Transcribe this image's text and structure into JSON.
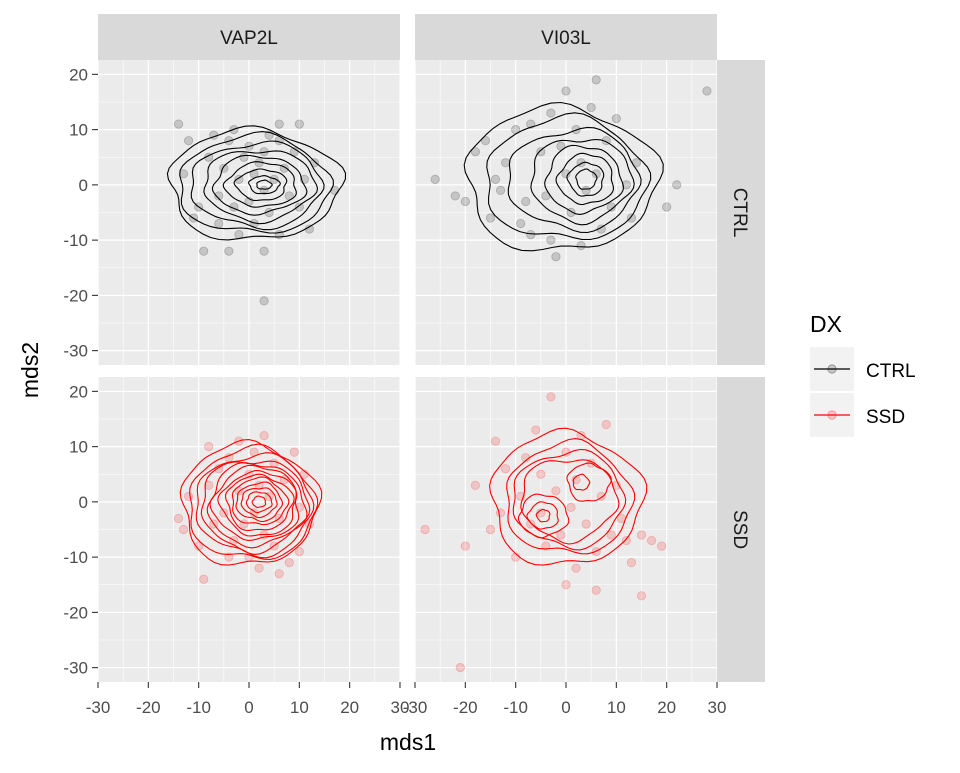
{
  "chart_data": {
    "type": "scatter",
    "title": "",
    "xlabel": "mds1",
    "ylabel": "mds2",
    "xlim": [
      -30,
      30
    ],
    "ylim": [
      -30,
      20
    ],
    "x_ticks": [
      "-30",
      "-20",
      "-10",
      "0",
      "10",
      "20",
      "30"
    ],
    "y_ticks": [
      "-30",
      "-20",
      "-10",
      "0",
      "10",
      "20"
    ],
    "facet_cols": [
      "VAP2L",
      "VI03L"
    ],
    "facet_rows": [
      "CTRL",
      "SSD"
    ],
    "legend": {
      "title": "DX",
      "position": "right",
      "entries": [
        {
          "label": "CTRL",
          "color": "#000000"
        },
        {
          "label": "SSD",
          "color": "#ff0000"
        }
      ]
    },
    "grid": true,
    "panels": [
      {
        "col": "VAP2L",
        "row": "CTRL",
        "series": "CTRL",
        "color": "#000000",
        "points": [
          [
            -14,
            11
          ],
          [
            -13,
            2
          ],
          [
            -12,
            8
          ],
          [
            -11,
            -6
          ],
          [
            -10,
            -4
          ],
          [
            -9,
            -12
          ],
          [
            -8,
            5
          ],
          [
            -7,
            9
          ],
          [
            -6,
            -2
          ],
          [
            -5,
            3
          ],
          [
            -4,
            8
          ],
          [
            -3,
            -4
          ],
          [
            -3,
            10
          ],
          [
            -2,
            1
          ],
          [
            -2,
            -9
          ],
          [
            -1,
            5
          ],
          [
            0,
            -3
          ],
          [
            0,
            7
          ],
          [
            1,
            2
          ],
          [
            1,
            -7
          ],
          [
            2,
            4
          ],
          [
            3,
            -1
          ],
          [
            3,
            6
          ],
          [
            4,
            -5
          ],
          [
            4,
            9
          ],
          [
            5,
            1
          ],
          [
            6,
            -9
          ],
          [
            6,
            8
          ],
          [
            7,
            3
          ],
          [
            8,
            -2
          ],
          [
            9,
            6
          ],
          [
            10,
            -4
          ],
          [
            10,
            11
          ],
          [
            11,
            1
          ],
          [
            12,
            -8
          ],
          [
            13,
            4
          ],
          [
            17,
            -1
          ],
          [
            -4,
            -12
          ],
          [
            3,
            -12
          ],
          [
            3,
            -21
          ],
          [
            -6,
            -7
          ],
          [
            6,
            11
          ]
        ],
        "contours": [
          {
            "cx": 1,
            "cy": 0,
            "rx": 17,
            "ry": 10
          },
          {
            "cx": 1,
            "cy": 0,
            "rx": 15,
            "ry": 8.8
          },
          {
            "cx": 1.5,
            "cy": 0,
            "rx": 13,
            "ry": 7.6
          },
          {
            "cx": 2,
            "cy": 0,
            "rx": 11,
            "ry": 6.4
          },
          {
            "cx": 2,
            "cy": 0,
            "rx": 9,
            "ry": 5.2
          },
          {
            "cx": 2.5,
            "cy": 0,
            "rx": 7,
            "ry": 4
          },
          {
            "cx": 2.5,
            "cy": 0,
            "rx": 5,
            "ry": 2.8
          },
          {
            "cx": 3,
            "cy": 0,
            "rx": 3,
            "ry": 1.6
          },
          {
            "cx": 3,
            "cy": 0,
            "rx": 1.5,
            "ry": 0.8
          }
        ]
      },
      {
        "col": "VI03L",
        "row": "CTRL",
        "series": "CTRL",
        "color": "#000000",
        "points": [
          [
            -26,
            1
          ],
          [
            -22,
            -2
          ],
          [
            -20,
            -3
          ],
          [
            -18,
            6
          ],
          [
            -16,
            8
          ],
          [
            -15,
            -6
          ],
          [
            -14,
            1
          ],
          [
            -13,
            -1
          ],
          [
            -12,
            4
          ],
          [
            -10,
            10
          ],
          [
            -9,
            -7
          ],
          [
            -8,
            -3
          ],
          [
            -7,
            11
          ],
          [
            -7,
            -9
          ],
          [
            -5,
            6
          ],
          [
            -4,
            -2
          ],
          [
            -3,
            13
          ],
          [
            -3,
            -10
          ],
          [
            -1,
            7
          ],
          [
            0,
            2
          ],
          [
            0,
            17
          ],
          [
            1,
            -5
          ],
          [
            2,
            10
          ],
          [
            3,
            4
          ],
          [
            3,
            -11
          ],
          [
            4,
            -1
          ],
          [
            5,
            14
          ],
          [
            6,
            2
          ],
          [
            6,
            19
          ],
          [
            7,
            -8
          ],
          [
            8,
            8
          ],
          [
            9,
            -4
          ],
          [
            10,
            12
          ],
          [
            12,
            0
          ],
          [
            13,
            -6
          ],
          [
            14,
            4
          ],
          [
            20,
            -4
          ],
          [
            22,
            0
          ],
          [
            28,
            17
          ],
          [
            -2,
            -13
          ]
        ],
        "contours": [
          {
            "cx": -1,
            "cy": 1,
            "rx": 19,
            "ry": 13
          },
          {
            "cx": 0,
            "cy": 1,
            "rx": 16,
            "ry": 11
          },
          {
            "cx": 1.5,
            "cy": 1,
            "rx": 13,
            "ry": 9
          },
          {
            "cx": 3,
            "cy": 1,
            "rx": 10,
            "ry": 7.5
          },
          {
            "cx": 3.5,
            "cy": 1,
            "rx": 7.5,
            "ry": 6
          },
          {
            "cx": 4,
            "cy": 1,
            "rx": 5.5,
            "ry": 4.5
          },
          {
            "cx": 4,
            "cy": 1,
            "rx": 3.5,
            "ry": 3
          },
          {
            "cx": 4,
            "cy": 1,
            "rx": 2,
            "ry": 1.8
          }
        ]
      },
      {
        "col": "VAP2L",
        "row": "SSD",
        "series": "SSD",
        "color": "#ff0000",
        "points": [
          [
            -14,
            -3
          ],
          [
            -13,
            -5
          ],
          [
            -12,
            1
          ],
          [
            -10,
            -8
          ],
          [
            -9,
            -14
          ],
          [
            -8,
            10
          ],
          [
            -8,
            3
          ],
          [
            -7,
            -4
          ],
          [
            -6,
            6
          ],
          [
            -5,
            -2
          ],
          [
            -4,
            8
          ],
          [
            -3,
            -7
          ],
          [
            -2,
            2
          ],
          [
            -2,
            11
          ],
          [
            -1,
            -4
          ],
          [
            0,
            5
          ],
          [
            0,
            -10
          ],
          [
            1,
            -2
          ],
          [
            1,
            9
          ],
          [
            2,
            3
          ],
          [
            3,
            -6
          ],
          [
            3,
            12
          ],
          [
            4,
            1
          ],
          [
            5,
            -8
          ],
          [
            5,
            7
          ],
          [
            6,
            -3
          ],
          [
            7,
            4
          ],
          [
            8,
            -11
          ],
          [
            9,
            9
          ],
          [
            10,
            -1
          ],
          [
            10,
            -9
          ],
          [
            11,
            5
          ],
          [
            12,
            -4
          ],
          [
            2,
            -12
          ],
          [
            -4,
            -10
          ],
          [
            6,
            -13
          ]
        ],
        "contours": [
          {
            "cx": 0,
            "cy": -0.5,
            "rx": 13.5,
            "ry": 11
          },
          {
            "cx": 0.5,
            "cy": -0.5,
            "rx": 12.5,
            "ry": 10
          },
          {
            "cx": 1,
            "cy": -0.5,
            "rx": 11.5,
            "ry": 9
          },
          {
            "cx": 1,
            "cy": -0.5,
            "rx": 10.5,
            "ry": 8.2
          },
          {
            "cx": 1.5,
            "cy": -0.5,
            "rx": 9.5,
            "ry": 7.4
          },
          {
            "cx": 1.5,
            "cy": -0.3,
            "rx": 8.5,
            "ry": 6.6
          },
          {
            "cx": 2,
            "cy": -0.3,
            "rx": 7.5,
            "ry": 5.8
          },
          {
            "cx": 2,
            "cy": -0.2,
            "rx": 6.5,
            "ry": 5
          },
          {
            "cx": 2,
            "cy": 0,
            "rx": 5.5,
            "ry": 4.2
          },
          {
            "cx": 2,
            "cy": 0,
            "rx": 4.5,
            "ry": 3.4
          },
          {
            "cx": 2,
            "cy": 0,
            "rx": 3.5,
            "ry": 2.6
          },
          {
            "cx": 2,
            "cy": 0,
            "rx": 2.5,
            "ry": 1.8
          },
          {
            "cx": 2,
            "cy": 0,
            "rx": 1.3,
            "ry": 1
          }
        ]
      },
      {
        "col": "VI03L",
        "row": "SSD",
        "series": "SSD",
        "color": "#ff0000",
        "points": [
          [
            -28,
            -5
          ],
          [
            -21,
            -30
          ],
          [
            -20,
            -8
          ],
          [
            -18,
            3
          ],
          [
            -15,
            -5
          ],
          [
            -14,
            11
          ],
          [
            -13,
            -2
          ],
          [
            -12,
            6
          ],
          [
            -10,
            -10
          ],
          [
            -9,
            1
          ],
          [
            -8,
            8
          ],
          [
            -7,
            -4
          ],
          [
            -6,
            13
          ],
          [
            -5,
            -2
          ],
          [
            -5,
            5
          ],
          [
            -4,
            -8
          ],
          [
            -3,
            19
          ],
          [
            -2,
            2
          ],
          [
            -1,
            -6
          ],
          [
            0,
            9
          ],
          [
            0,
            -15
          ],
          [
            1,
            -1
          ],
          [
            2,
            4
          ],
          [
            2,
            -12
          ],
          [
            3,
            12
          ],
          [
            4,
            -4
          ],
          [
            5,
            7
          ],
          [
            6,
            -9
          ],
          [
            7,
            1
          ],
          [
            8,
            14
          ],
          [
            9,
            -6
          ],
          [
            10,
            3
          ],
          [
            11,
            -3
          ],
          [
            12,
            -7
          ],
          [
            13,
            -11
          ],
          [
            15,
            -6
          ],
          [
            17,
            -7
          ],
          [
            19,
            -8
          ],
          [
            15,
            -17
          ],
          [
            6,
            -16
          ]
        ],
        "contours": [
          {
            "cx": 0,
            "cy": 0.5,
            "rx": 15,
            "ry": 12
          },
          {
            "cx": 0.5,
            "cy": 0.5,
            "rx": 12.5,
            "ry": 10
          },
          {
            "cx": 0.5,
            "cy": 0.5,
            "rx": 11,
            "ry": 8.6
          },
          {
            "cx": 0.5,
            "cy": 0.5,
            "rx": 9.5,
            "ry": 7.4
          },
          {
            "cx": -4.5,
            "cy": -2.5,
            "rx": 4.8,
            "ry": 3.8
          },
          {
            "cx": -4.5,
            "cy": -2.5,
            "rx": 3,
            "ry": 2.4
          },
          {
            "cx": -4.5,
            "cy": -2.5,
            "rx": 1.3,
            "ry": 1.1
          },
          {
            "cx": 4.5,
            "cy": 3.5,
            "rx": 4.2,
            "ry": 3.4
          },
          {
            "cx": 3,
            "cy": 3.5,
            "rx": 1.6,
            "ry": 1.4
          }
        ]
      }
    ]
  }
}
